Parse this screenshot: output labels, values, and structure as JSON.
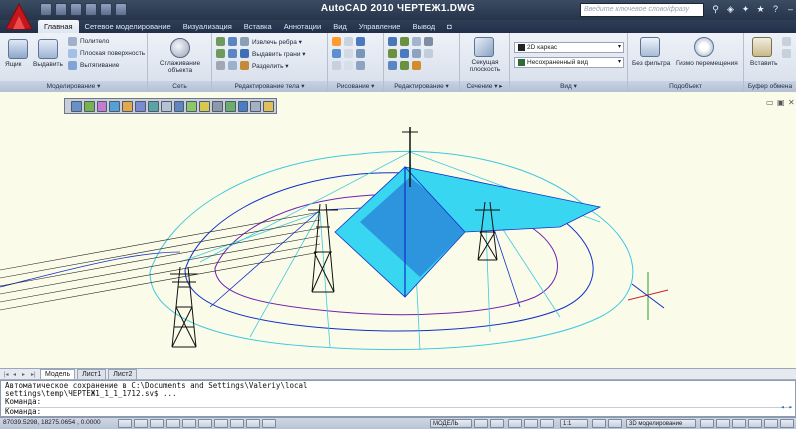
{
  "window": {
    "title": "AutoCAD 2010   ЧЕРТЕЖ1.DWG"
  },
  "search": {
    "placeholder": "Введите ключевое слово/фразу"
  },
  "ribbon": {
    "tabs": [
      "Главная",
      "Сетевое моделирование",
      "Визуализация",
      "Вставка",
      "Аннотации",
      "Вид",
      "Управление",
      "Вывод"
    ],
    "active_tab": "Главная",
    "modeling": {
      "box": "Ящик",
      "extrude": "Выдавить",
      "polysolid": "Политело",
      "planar_surface": "Плоская поверхность",
      "presspull": "Вытягивание",
      "title": "Моделирование ▾"
    },
    "mesh": {
      "smooth": "Сглаживание объекта",
      "title": "Сеть"
    },
    "solid_editing": {
      "extract_edges": "Извлечь ребра ▾",
      "extrude_faces": "Выдавить грани ▾",
      "separate": "Разделить ▾",
      "title": "Редактирование тела ▾"
    },
    "draw": {
      "title": "Рисование ▾"
    },
    "modify": {
      "title": "Редактирование ▾"
    },
    "section": {
      "section_plane": "Секущая плоскость",
      "title": "Сечение ▾ ▸"
    },
    "view": {
      "visual_style": "2D каркас",
      "saved_view": "Несохраненный вид",
      "title": "Вид ▾"
    },
    "subobject": {
      "no_filter": "Без фильтра",
      "move_gizmo": "Гизмо перемещения",
      "title": "Подобъект"
    },
    "clipboard": {
      "paste": "Вставить",
      "title": "Буфер обмена"
    }
  },
  "layout_tabs": [
    "Модель",
    "Лист1",
    "Лист2"
  ],
  "active_layout": "Модель",
  "command": {
    "history": [
      "Автоматическое сохранение в C:\\Documents and Settings\\Valeriy\\local",
      "settings\\temp\\ЧЕРТЕЖ1_1_1_1712.sv$ ...",
      "Команда:"
    ],
    "prompt": "Команда:"
  },
  "status": {
    "coords": "87039.5298, 18275.0654 , 0.0000",
    "model": "МОДЕЛЬ",
    "scale": "1:1",
    "workspace": "3D моделирование"
  },
  "colors": {
    "drawing_bg": "#fbfbe9",
    "roof": "#38d6f0",
    "wire_blue": "#1030c8",
    "wire_purple": "#7020b0",
    "wire_cyan": "#40c8e0"
  }
}
